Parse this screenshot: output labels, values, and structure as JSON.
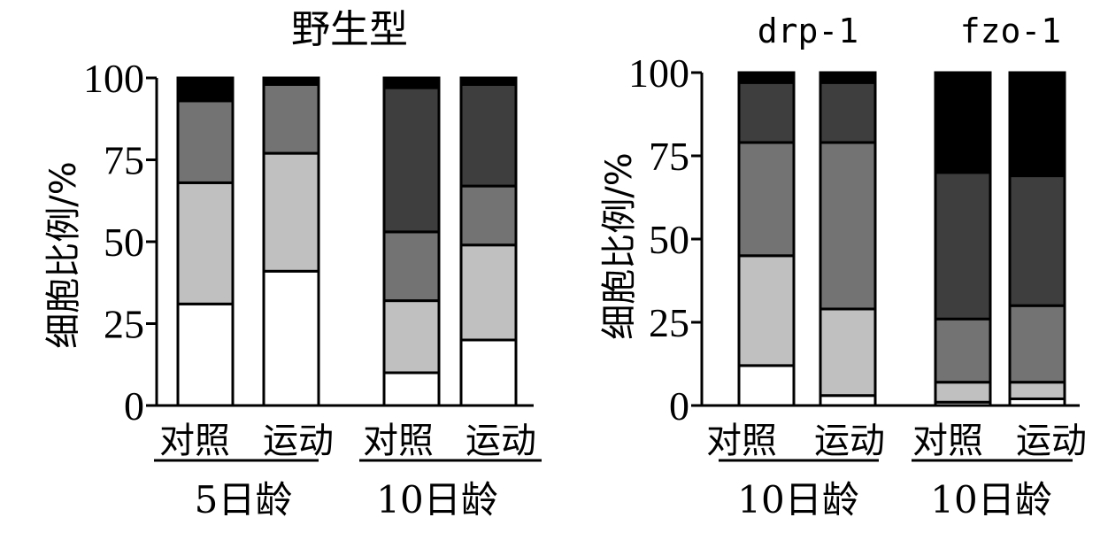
{
  "colors": {
    "segments": [
      "#ffffff",
      "#c0c0c0",
      "#737373",
      "#3e3e3e",
      "#000000"
    ]
  },
  "chart_data": [
    {
      "type": "bar",
      "stacked": true,
      "title": "野生型",
      "ylabel": "细胞比例/%",
      "ylim": [
        0,
        100
      ],
      "yticks": [
        "0",
        "25",
        "50",
        "75",
        "100"
      ],
      "categories": [
        "对照",
        "运动",
        "对照",
        "运动"
      ],
      "groups": [
        {
          "label": "5日龄",
          "categories": [
            0,
            1
          ]
        },
        {
          "label": "10日龄",
          "categories": [
            2,
            3
          ]
        }
      ],
      "series": [
        {
          "color": "#ffffff",
          "values": [
            31,
            41,
            10,
            20
          ]
        },
        {
          "color": "#c0c0c0",
          "values": [
            37,
            36,
            22,
            29
          ]
        },
        {
          "color": "#737373",
          "values": [
            25,
            21,
            21,
            18
          ]
        },
        {
          "color": "#3e3e3e",
          "values": [
            0,
            0,
            44,
            31
          ]
        },
        {
          "color": "#000000",
          "values": [
            7,
            2,
            3,
            2
          ]
        }
      ]
    },
    {
      "type": "bar",
      "stacked": true,
      "subtitles": [
        "drp-1",
        "fzo-1"
      ],
      "ylabel": "细胞比例/%",
      "ylim": [
        0,
        100
      ],
      "yticks": [
        "0",
        "25",
        "50",
        "75",
        "100"
      ],
      "categories": [
        "对照",
        "运动",
        "对照",
        "运动"
      ],
      "groups": [
        {
          "label": "10日龄",
          "categories": [
            0,
            1
          ]
        },
        {
          "label": "10日龄",
          "categories": [
            2,
            3
          ]
        }
      ],
      "series": [
        {
          "color": "#ffffff",
          "values": [
            12,
            3,
            1,
            2
          ]
        },
        {
          "color": "#c0c0c0",
          "values": [
            33,
            26,
            6,
            5
          ]
        },
        {
          "color": "#737373",
          "values": [
            34,
            50,
            19,
            23
          ]
        },
        {
          "color": "#3e3e3e",
          "values": [
            18,
            18,
            44,
            39
          ]
        },
        {
          "color": "#000000",
          "values": [
            3,
            3,
            30,
            31
          ]
        }
      ]
    }
  ]
}
